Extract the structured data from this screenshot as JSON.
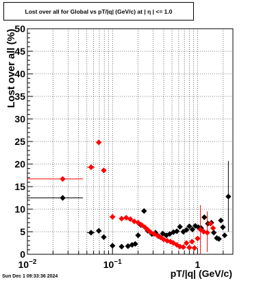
{
  "title": "Lost over all for Global vs pT/|q| (GeV/c) at |  η  | <= 1.0",
  "timestamp": "Sun Dec  1 09:33:36 2024",
  "colors": {
    "series_a": "#000000",
    "series_b": "#ff0000",
    "grid": "#000000"
  },
  "chart_data": {
    "type": "scatter",
    "title": "Lost over all for Global vs pT/|q| (GeV/c) at |  η  | <= 1.0",
    "xlabel": "pT/|q| (GeV/c)",
    "ylabel": "Lost over all (%)",
    "xscale": "log",
    "xlim": [
      0.01,
      2.6
    ],
    "ylim": [
      0,
      50
    ],
    "grid": true,
    "y_ticks": [
      "0",
      "5",
      "10",
      "15",
      "20",
      "25",
      "30",
      "35",
      "40",
      "45",
      "50"
    ],
    "x_ticks": [
      {
        "value": 0.01,
        "base": "10",
        "exp": "−2"
      },
      {
        "value": 0.1,
        "base": "10",
        "exp": "−1"
      },
      {
        "value": 1,
        "base": "1",
        "exp": ""
      }
    ],
    "series": [
      {
        "color": "#000000",
        "points": [
          {
            "x": 0.026,
            "y": 12.5,
            "xlo": 0.01,
            "xhi": 0.045
          },
          {
            "x": 0.056,
            "y": 4.8,
            "xlo": 0.05,
            "xhi": 0.062
          },
          {
            "x": 0.069,
            "y": 5.2
          },
          {
            "x": 0.079,
            "y": 3.8
          },
          {
            "x": 0.1,
            "y": 1.9
          },
          {
            "x": 0.128,
            "y": 1.7
          },
          {
            "x": 0.152,
            "y": 1.8
          },
          {
            "x": 0.17,
            "y": 2.1
          },
          {
            "x": 0.185,
            "y": 2.3
          },
          {
            "x": 0.2,
            "y": 4.2
          },
          {
            "x": 0.215,
            "y": 6.5
          },
          {
            "x": 0.235,
            "y": 9.6
          },
          {
            "x": 0.26,
            "y": 5.2
          },
          {
            "x": 0.29,
            "y": 4.5
          },
          {
            "x": 0.32,
            "y": 4.8
          },
          {
            "x": 0.35,
            "y": 4.0
          },
          {
            "x": 0.39,
            "y": 4.6
          },
          {
            "x": 0.43,
            "y": 4.2
          },
          {
            "x": 0.47,
            "y": 4.5
          },
          {
            "x": 0.52,
            "y": 4.9
          },
          {
            "x": 0.57,
            "y": 5.1
          },
          {
            "x": 0.62,
            "y": 6.1
          },
          {
            "x": 0.68,
            "y": 5.0
          },
          {
            "x": 0.74,
            "y": 5.4
          },
          {
            "x": 0.8,
            "y": 6.2
          },
          {
            "x": 0.87,
            "y": 5.5
          },
          {
            "x": 0.94,
            "y": 6.3
          },
          {
            "x": 1.02,
            "y": 6.0
          },
          {
            "x": 1.1,
            "y": 5.8
          },
          {
            "x": 1.2,
            "y": 8.2
          },
          {
            "x": 1.32,
            "y": 6.8
          },
          {
            "x": 1.45,
            "y": 7.0
          },
          {
            "x": 1.55,
            "y": 4.8
          },
          {
            "x": 1.68,
            "y": 3.6
          },
          {
            "x": 1.78,
            "y": 3.4
          },
          {
            "x": 1.88,
            "y": 7.5
          },
          {
            "x": 1.98,
            "y": 6.0
          },
          {
            "x": 2.08,
            "y": 4.2
          },
          {
            "x": 2.3,
            "y": 12.8,
            "ylo": 5.0,
            "yhi": 20.7
          }
        ]
      },
      {
        "color": "#ff0000",
        "points": [
          {
            "x": 0.026,
            "y": 16.7,
            "xlo": 0.01,
            "xhi": 0.045
          },
          {
            "x": 0.056,
            "y": 19.3,
            "xlo": 0.05,
            "xhi": 0.062
          },
          {
            "x": 0.069,
            "y": 24.8
          },
          {
            "x": 0.079,
            "y": 18.6
          },
          {
            "x": 0.1,
            "y": 8.3,
            "xlo": 0.092,
            "xhi": 0.108
          },
          {
            "x": 0.128,
            "y": 7.9
          },
          {
            "x": 0.145,
            "y": 8.1
          },
          {
            "x": 0.162,
            "y": 7.8
          },
          {
            "x": 0.18,
            "y": 7.3
          },
          {
            "x": 0.2,
            "y": 7.0
          },
          {
            "x": 0.22,
            "y": 6.5
          },
          {
            "x": 0.24,
            "y": 6.0
          },
          {
            "x": 0.26,
            "y": 5.4
          },
          {
            "x": 0.28,
            "y": 4.9
          },
          {
            "x": 0.31,
            "y": 4.5
          },
          {
            "x": 0.34,
            "y": 4.1
          },
          {
            "x": 0.37,
            "y": 3.7
          },
          {
            "x": 0.4,
            "y": 3.3
          },
          {
            "x": 0.44,
            "y": 3.0
          },
          {
            "x": 0.48,
            "y": 2.8
          },
          {
            "x": 0.52,
            "y": 2.5
          },
          {
            "x": 0.57,
            "y": 2.1
          },
          {
            "x": 0.62,
            "y": 1.7
          },
          {
            "x": 0.68,
            "y": 1.6
          },
          {
            "x": 0.74,
            "y": 2.5
          },
          {
            "x": 0.8,
            "y": 1.5
          },
          {
            "x": 0.86,
            "y": 2.8
          },
          {
            "x": 0.92,
            "y": 1.4
          },
          {
            "x": 1.0,
            "y": 3.5
          },
          {
            "x": 1.08,
            "y": 5.5,
            "ylo": 0.0,
            "yhi": 10.9
          },
          {
            "x": 1.18,
            "y": 5.0
          },
          {
            "x": 1.3,
            "y": 4.8,
            "ylo": 0.5,
            "yhi": 9.5
          },
          {
            "x": 1.42,
            "y": 6.8
          },
          {
            "x": 1.52,
            "y": 5.8
          }
        ]
      }
    ]
  }
}
